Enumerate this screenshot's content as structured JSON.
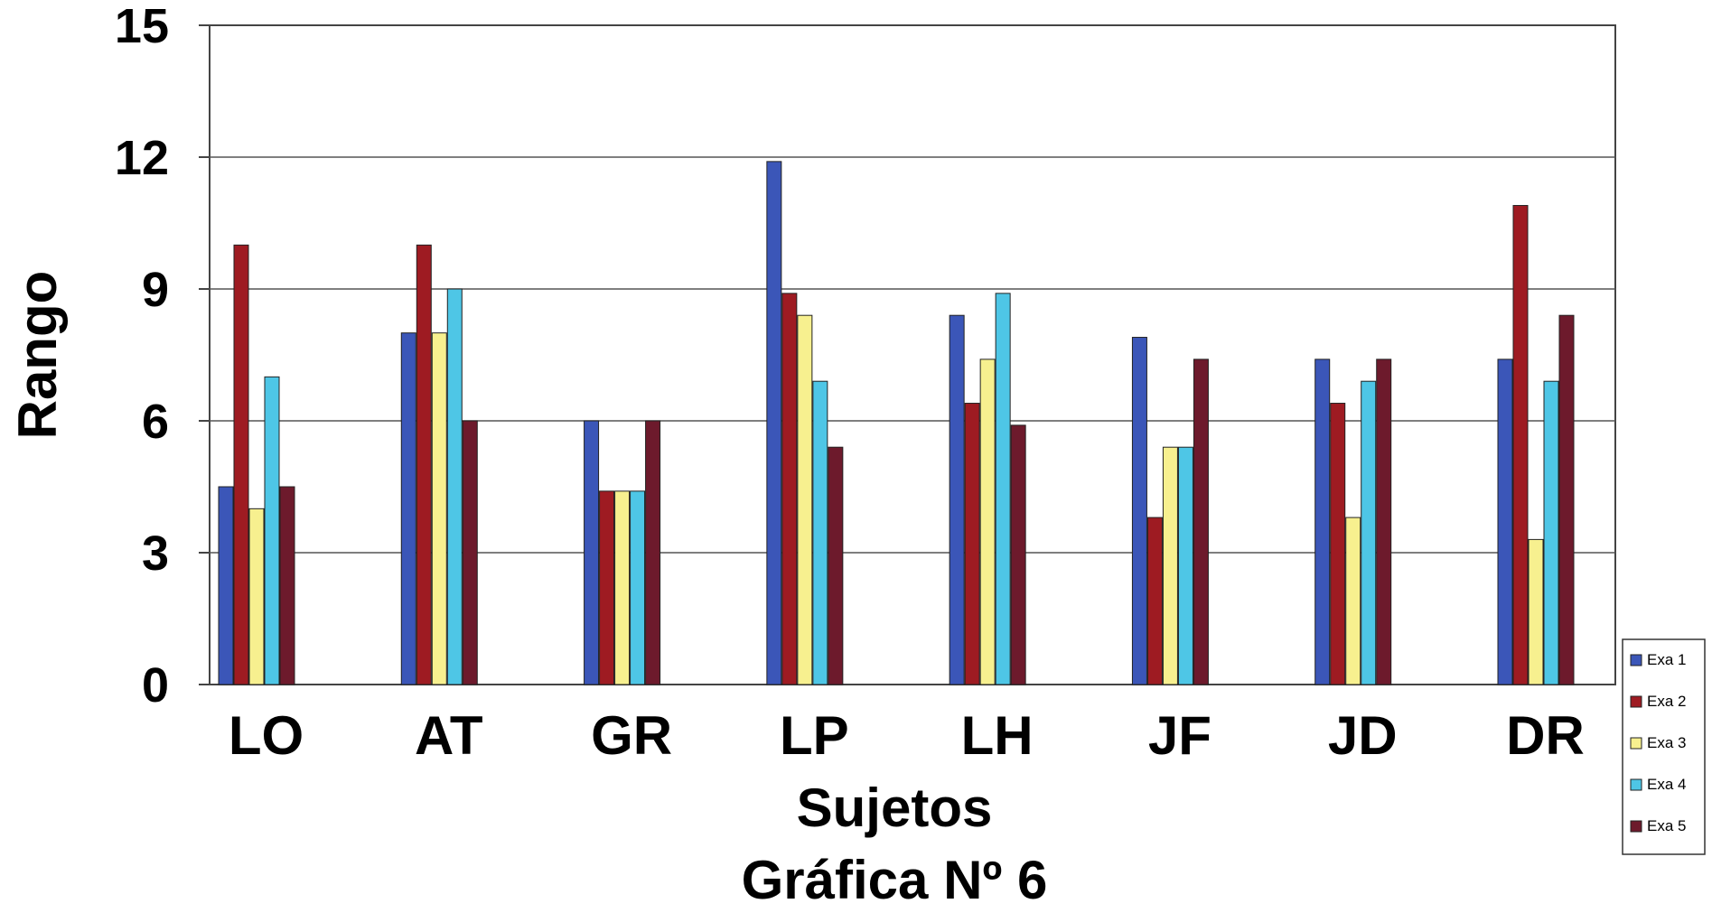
{
  "chart_data": {
    "type": "bar",
    "title": "Gráfica Nº 6",
    "xlabel": "Sujetos",
    "ylabel": "Rango",
    "ylim": [
      0,
      15
    ],
    "yticks": [
      "0",
      "3",
      "6",
      "9",
      "12",
      "15"
    ],
    "grid": true,
    "legend": "right-bottom",
    "categories": [
      "LO",
      "AT",
      "GR",
      "LP",
      "LH",
      "JF",
      "JD",
      "DR"
    ],
    "series": [
      {
        "name": "Exa 1",
        "color": "#3b56b8",
        "values": [
          4.5,
          8,
          6,
          11.9,
          8.4,
          7.9,
          7.4,
          7.4
        ]
      },
      {
        "name": "Exa 2",
        "color": "#9e1b22",
        "values": [
          10,
          10,
          4.4,
          8.9,
          6.4,
          3.8,
          6.4,
          10.9
        ]
      },
      {
        "name": "Exa 3",
        "color": "#f7f08f",
        "values": [
          4,
          8,
          4.4,
          8.4,
          7.4,
          5.4,
          3.8,
          3.3
        ]
      },
      {
        "name": "Exa 4",
        "color": "#4ec6e6",
        "values": [
          7,
          9,
          4.4,
          6.9,
          8.9,
          5.4,
          6.9,
          6.9
        ]
      },
      {
        "name": "Exa 5",
        "color": "#6d1a2c",
        "values": [
          4.5,
          6,
          6,
          5.4,
          5.9,
          7.4,
          7.4,
          8.4
        ]
      }
    ]
  }
}
